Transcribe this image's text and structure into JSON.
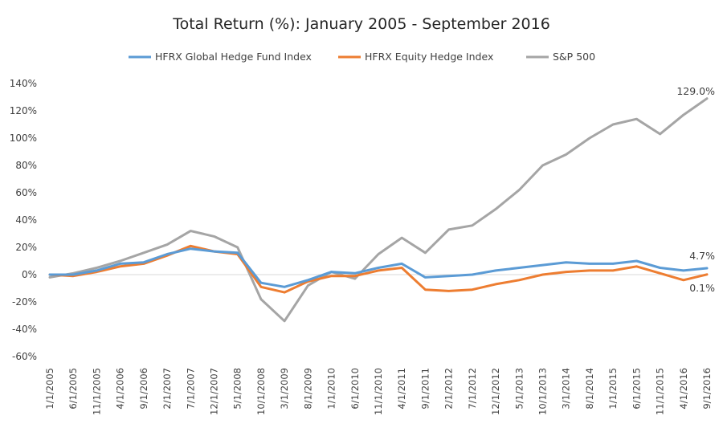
{
  "chart_data": {
    "type": "line",
    "title": "Total Return (%): January 2005 - September 2016",
    "xlabel": "",
    "ylabel": "",
    "ylim": [
      -60,
      140
    ],
    "yticks": [
      "-60%",
      "-40%",
      "-20%",
      "0%",
      "20%",
      "40%",
      "60%",
      "80%",
      "100%",
      "120%",
      "140%"
    ],
    "ytick_values": [
      -60,
      -40,
      -20,
      0,
      20,
      40,
      60,
      80,
      100,
      120,
      140
    ],
    "xtick_labels": [
      "1/1/2005",
      "6/1/2005",
      "11/1/2005",
      "4/1/2006",
      "9/1/2006",
      "2/1/2007",
      "7/1/2007",
      "12/1/2007",
      "5/1/2008",
      "10/1/2008",
      "3/1/2009",
      "8/1/2009",
      "1/1/2010",
      "6/1/2010",
      "11/1/2010",
      "4/1/2011",
      "9/1/2011",
      "2/1/2012",
      "7/1/2012",
      "12/1/2012",
      "5/1/2013",
      "10/1/2013",
      "3/1/2014",
      "8/1/2014",
      "1/1/2015",
      "6/1/2015",
      "11/1/2015",
      "4/1/2016",
      "9/1/2016"
    ],
    "legend_position": "top",
    "grid": "zero-line only",
    "series": [
      {
        "name": "HFRX Global Hedge Fund Index",
        "color": "#5B9BD5",
        "end_label": "4.7%",
        "x": [
          "2005-01",
          "2005-06",
          "2005-11",
          "2006-04",
          "2006-09",
          "2007-02",
          "2007-07",
          "2007-12",
          "2008-05",
          "2008-10",
          "2009-03",
          "2009-08",
          "2010-01",
          "2010-06",
          "2010-11",
          "2011-04",
          "2011-09",
          "2012-02",
          "2012-07",
          "2012-12",
          "2013-05",
          "2013-10",
          "2014-03",
          "2014-08",
          "2015-01",
          "2015-06",
          "2015-11",
          "2016-04",
          "2016-09"
        ],
        "values": [
          0,
          0,
          3,
          8,
          9,
          15,
          19,
          17,
          16,
          -6,
          -9,
          -4,
          2,
          1,
          5,
          8,
          -2,
          -1,
          0,
          3,
          5,
          7,
          9,
          8,
          8,
          10,
          5,
          3,
          4.7
        ]
      },
      {
        "name": "HFRX Equity Hedge Index",
        "color": "#ED7D31",
        "end_label": "0.1%",
        "x": [
          "2005-01",
          "2005-06",
          "2005-11",
          "2006-04",
          "2006-09",
          "2007-02",
          "2007-07",
          "2007-12",
          "2008-05",
          "2008-10",
          "2009-03",
          "2009-08",
          "2010-01",
          "2010-06",
          "2010-11",
          "2011-04",
          "2011-09",
          "2012-02",
          "2012-07",
          "2012-12",
          "2013-05",
          "2013-10",
          "2014-03",
          "2014-08",
          "2015-01",
          "2015-06",
          "2015-11",
          "2016-04",
          "2016-09"
        ],
        "values": [
          0,
          -1,
          2,
          6,
          8,
          14,
          21,
          17,
          15,
          -9,
          -13,
          -5,
          -1,
          -1,
          3,
          5,
          -11,
          -12,
          -11,
          -7,
          -4,
          0,
          2,
          3,
          3,
          6,
          1,
          -4,
          0.1
        ]
      },
      {
        "name": "S&P 500",
        "color": "#A5A5A5",
        "end_label": "129.0%",
        "x": [
          "2005-01",
          "2005-06",
          "2005-11",
          "2006-04",
          "2006-09",
          "2007-02",
          "2007-07",
          "2007-12",
          "2008-05",
          "2008-10",
          "2009-03",
          "2009-08",
          "2010-01",
          "2010-06",
          "2010-11",
          "2011-04",
          "2011-09",
          "2012-02",
          "2012-07",
          "2012-12",
          "2013-05",
          "2013-10",
          "2014-03",
          "2014-08",
          "2015-01",
          "2015-06",
          "2015-11",
          "2016-04",
          "2016-09"
        ],
        "values": [
          -2,
          1,
          5,
          10,
          16,
          22,
          32,
          28,
          20,
          -18,
          -34,
          -8,
          2,
          -3,
          15,
          27,
          16,
          33,
          36,
          48,
          62,
          80,
          88,
          100,
          110,
          114,
          103,
          117,
          129
        ]
      }
    ]
  }
}
